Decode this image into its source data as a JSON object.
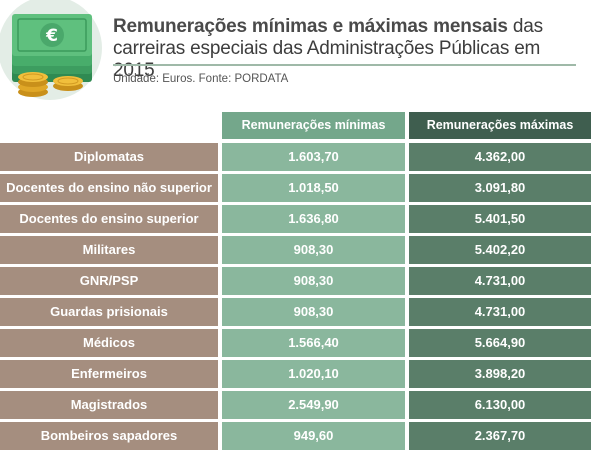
{
  "header": {
    "title_bold": "Remunerações mínimas e máximas mensais",
    "title_rest": " das carreiras especiais das Administrações Públicas em 2015",
    "subtitle": "Unidade: Euros. Fonte: PORDATA"
  },
  "table": {
    "col_min": "Remunerações mínimas",
    "col_max": "Remunerações máximas",
    "rows": [
      {
        "label": "Diplomatas",
        "min": "1.603,70",
        "max": "4.362,00"
      },
      {
        "label": "Docentes do ensino não superior",
        "min": "1.018,50",
        "max": "3.091,80"
      },
      {
        "label": "Docentes do ensino superior",
        "min": "1.636,80",
        "max": "5.401,50"
      },
      {
        "label": "Militares",
        "min": "908,30",
        "max": "5.402,20"
      },
      {
        "label": "GNR/PSP",
        "min": "908,30",
        "max": "4.731,00"
      },
      {
        "label": "Guardas prisionais",
        "min": "908,30",
        "max": "4.731,00"
      },
      {
        "label": "Médicos",
        "min": "1.566,40",
        "max": "5.664,90"
      },
      {
        "label": "Enfermeiros",
        "min": "1.020,10",
        "max": "3.898,20"
      },
      {
        "label": "Magistrados",
        "min": "2.549,90",
        "max": "6.130,00"
      },
      {
        "label": "Bombeiros sapadores",
        "min": "949,60",
        "max": "2.367,70"
      }
    ]
  },
  "icon": {
    "name": "money-coins-icon",
    "currency_symbol": "€"
  },
  "colors": {
    "label_cell": "#a58e7f",
    "min_cell": "#8ab79d",
    "max_cell": "#5a7e69",
    "min_header": "#74a78b",
    "max_header": "#3f5e4f"
  }
}
